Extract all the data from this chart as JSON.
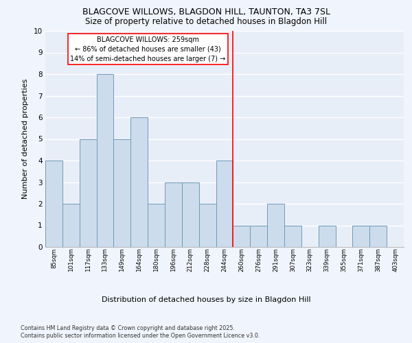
{
  "title1": "BLAGCOVE WILLOWS, BLAGDON HILL, TAUNTON, TA3 7SL",
  "title2": "Size of property relative to detached houses in Blagdon Hill",
  "xlabel": "Distribution of detached houses by size in Blagdon Hill",
  "ylabel": "Number of detached properties",
  "categories": [
    "85sqm",
    "101sqm",
    "117sqm",
    "133sqm",
    "149sqm",
    "164sqm",
    "180sqm",
    "196sqm",
    "212sqm",
    "228sqm",
    "244sqm",
    "260sqm",
    "276sqm",
    "291sqm",
    "307sqm",
    "323sqm",
    "339sqm",
    "355sqm",
    "371sqm",
    "387sqm",
    "403sqm"
  ],
  "values": [
    4,
    2,
    5,
    8,
    5,
    6,
    2,
    3,
    3,
    2,
    4,
    1,
    1,
    2,
    1,
    0,
    1,
    0,
    1,
    1,
    0
  ],
  "bar_color": "#ccdcec",
  "bar_edge_color": "#7099b8",
  "annotation_title": "BLAGCOVE WILLOWS: 259sqm",
  "annotation_line1": "← 86% of detached houses are smaller (43)",
  "annotation_line2": "14% of semi-detached houses are larger (7) →",
  "ylim": [
    0,
    10
  ],
  "yticks": [
    0,
    1,
    2,
    3,
    4,
    5,
    6,
    7,
    8,
    9,
    10
  ],
  "background_color": "#e8eef8",
  "grid_color": "#ffffff",
  "footer_line1": "Contains HM Land Registry data © Crown copyright and database right 2025.",
  "footer_line2": "Contains public sector information licensed under the Open Government Licence v3.0."
}
